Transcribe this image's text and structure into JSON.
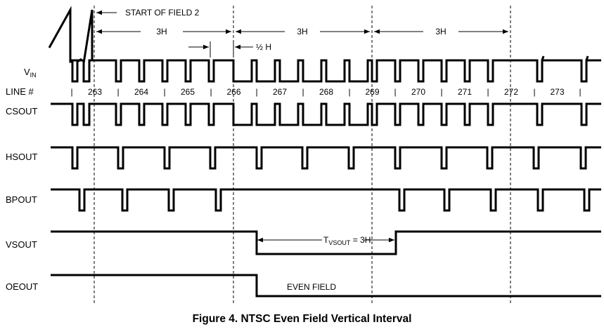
{
  "signals": {
    "vin": "V",
    "vin_sub": "IN",
    "line_num": "LINE #",
    "csout": "CSOUT",
    "hsout": "HSOUT",
    "bpout": "BPOUT",
    "vsout": "VSOUT",
    "oeout": "OEOUT"
  },
  "line_numbers": [
    "263",
    "264",
    "265",
    "266",
    "267",
    "268",
    "269",
    "270",
    "271",
    "272",
    "273"
  ],
  "annotations": {
    "start_field": "START OF FIELD 2",
    "interval_1": "3H",
    "interval_2": "3H",
    "interval_3": "3H",
    "half_h": "½ H",
    "tvsout_pre": "T",
    "tvsout_sub": "VSOUT",
    "tvsout_post": " = 3H",
    "even_field": "EVEN FIELD"
  },
  "caption": "Figure 4.  NTSC Even Field Vertical Interval"
}
